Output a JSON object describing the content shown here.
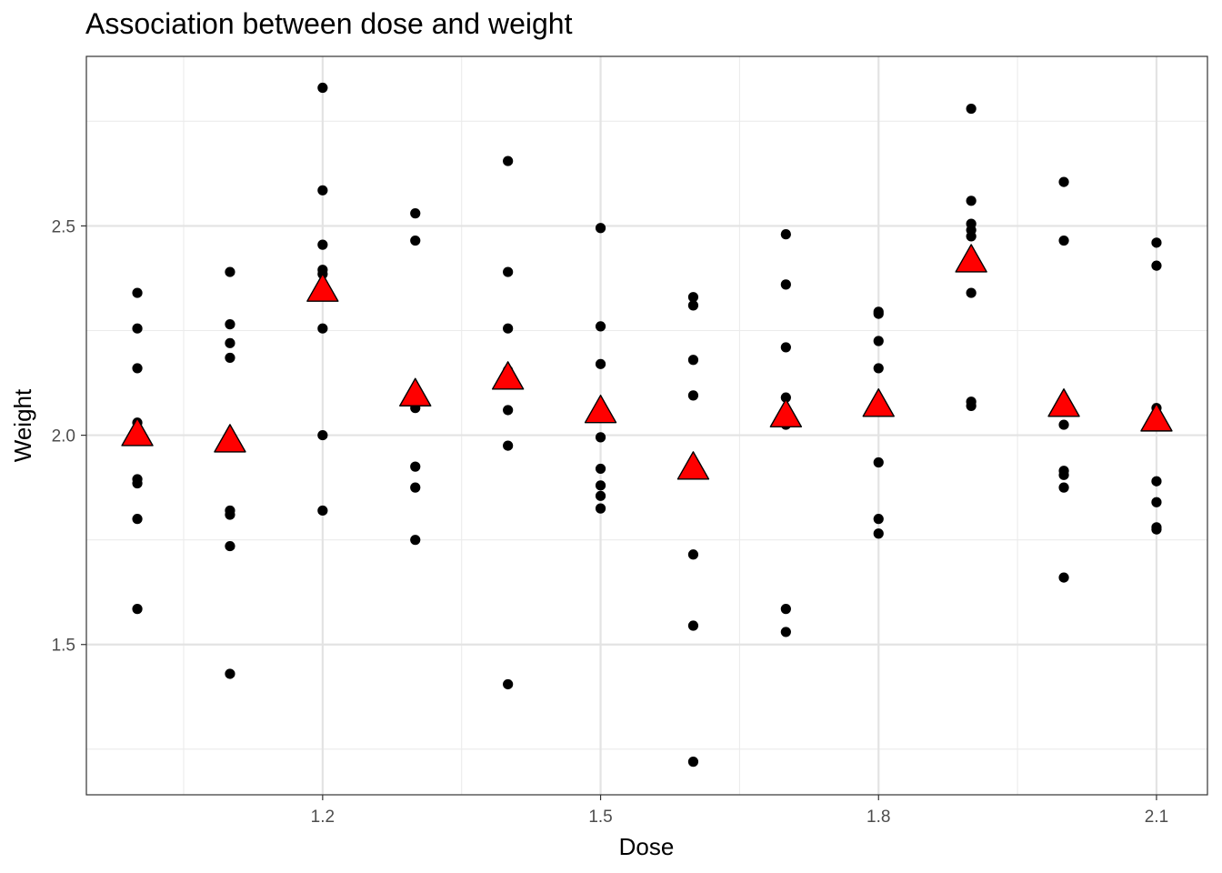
{
  "chart_data": {
    "type": "scatter",
    "title": "Association between dose and weight",
    "xlabel": "Dose",
    "ylabel": "Weight",
    "xlim": [
      0.945,
      2.155
    ],
    "ylim": [
      1.141,
      2.905
    ],
    "x_ticks": [
      1.2,
      1.5,
      1.8,
      2.1
    ],
    "x_tick_labels": [
      "1.2",
      "1.5",
      "1.8",
      "2.1"
    ],
    "y_ticks": [
      1.5,
      2.0,
      2.5
    ],
    "y_tick_labels": [
      "1.5",
      "2.0",
      "2.5"
    ],
    "grid": true,
    "legend": "none",
    "series": [
      {
        "marker": "circle",
        "color": "#000000",
        "points": [
          [
            1.0,
            2.34
          ],
          [
            1.0,
            2.255
          ],
          [
            1.0,
            2.16
          ],
          [
            1.0,
            2.03
          ],
          [
            1.0,
            1.895
          ],
          [
            1.0,
            1.885
          ],
          [
            1.0,
            1.8
          ],
          [
            1.0,
            1.585
          ],
          [
            1.1,
            2.39
          ],
          [
            1.1,
            2.265
          ],
          [
            1.1,
            2.22
          ],
          [
            1.1,
            2.185
          ],
          [
            1.1,
            1.82
          ],
          [
            1.1,
            1.81
          ],
          [
            1.1,
            1.735
          ],
          [
            1.1,
            1.43
          ],
          [
            1.2,
            2.83
          ],
          [
            1.2,
            2.585
          ],
          [
            1.2,
            2.455
          ],
          [
            1.2,
            2.395
          ],
          [
            1.2,
            2.385
          ],
          [
            1.2,
            2.255
          ],
          [
            1.2,
            2.0
          ],
          [
            1.2,
            1.82
          ],
          [
            1.3,
            2.53
          ],
          [
            1.3,
            2.465
          ],
          [
            1.3,
            2.065
          ],
          [
            1.3,
            1.925
          ],
          [
            1.3,
            1.875
          ],
          [
            1.3,
            1.75
          ],
          [
            1.4,
            2.655
          ],
          [
            1.4,
            2.39
          ],
          [
            1.4,
            2.255
          ],
          [
            1.4,
            2.155
          ],
          [
            1.4,
            2.06
          ],
          [
            1.4,
            1.975
          ],
          [
            1.4,
            1.405
          ],
          [
            1.5,
            2.495
          ],
          [
            1.5,
            2.26
          ],
          [
            1.5,
            2.17
          ],
          [
            1.5,
            1.995
          ],
          [
            1.5,
            1.92
          ],
          [
            1.5,
            1.88
          ],
          [
            1.5,
            1.855
          ],
          [
            1.5,
            1.825
          ],
          [
            1.6,
            2.33
          ],
          [
            1.6,
            2.31
          ],
          [
            1.6,
            2.18
          ],
          [
            1.6,
            2.095
          ],
          [
            1.6,
            1.715
          ],
          [
            1.6,
            1.545
          ],
          [
            1.6,
            1.22
          ],
          [
            1.7,
            2.48
          ],
          [
            1.7,
            2.36
          ],
          [
            1.7,
            2.21
          ],
          [
            1.7,
            2.09
          ],
          [
            1.7,
            2.025
          ],
          [
            1.7,
            1.585
          ],
          [
            1.7,
            1.53
          ],
          [
            1.8,
            2.295
          ],
          [
            1.8,
            2.29
          ],
          [
            1.8,
            2.225
          ],
          [
            1.8,
            2.16
          ],
          [
            1.8,
            1.935
          ],
          [
            1.8,
            1.8
          ],
          [
            1.8,
            1.765
          ],
          [
            1.9,
            2.78
          ],
          [
            1.9,
            2.56
          ],
          [
            1.9,
            2.505
          ],
          [
            1.9,
            2.49
          ],
          [
            1.9,
            2.475
          ],
          [
            1.9,
            2.34
          ],
          [
            1.9,
            2.08
          ],
          [
            1.9,
            2.07
          ],
          [
            2.0,
            2.605
          ],
          [
            2.0,
            2.465
          ],
          [
            2.0,
            2.025
          ],
          [
            2.0,
            1.915
          ],
          [
            2.0,
            1.905
          ],
          [
            2.0,
            1.875
          ],
          [
            2.0,
            1.66
          ],
          [
            2.1,
            2.46
          ],
          [
            2.1,
            2.405
          ],
          [
            2.1,
            2.065
          ],
          [
            2.1,
            1.89
          ],
          [
            2.1,
            1.84
          ],
          [
            2.1,
            1.78
          ],
          [
            2.1,
            1.775
          ]
        ]
      },
      {
        "marker": "triangle",
        "color": "#ff0000",
        "points": [
          [
            1.0,
            2.0
          ],
          [
            1.1,
            1.985
          ],
          [
            1.2,
            2.345
          ],
          [
            1.3,
            2.095
          ],
          [
            1.4,
            2.135
          ],
          [
            1.5,
            2.055
          ],
          [
            1.6,
            1.92
          ],
          [
            1.7,
            2.045
          ],
          [
            1.8,
            2.07
          ],
          [
            1.9,
            2.415
          ],
          [
            2.0,
            2.07
          ],
          [
            2.1,
            2.035
          ]
        ]
      }
    ]
  }
}
